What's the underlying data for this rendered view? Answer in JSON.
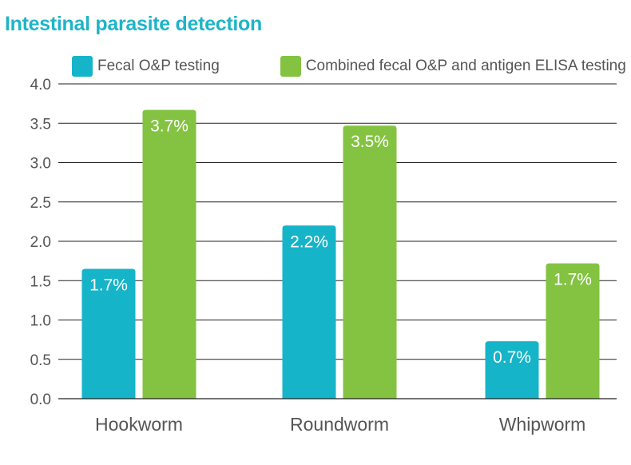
{
  "colors": {
    "title": "#1fb4c7",
    "series_fecal": "#16b4c9",
    "series_combined": "#83c341",
    "grid": "#222222",
    "text": "#555555"
  },
  "chart_data": {
    "type": "bar",
    "title": "Intestinal parasite detection",
    "categories": [
      "Hookworm",
      "Roundworm",
      "Whipworm"
    ],
    "series": [
      {
        "name": "Fecal O&P testing",
        "values": [
          1.65,
          2.2,
          0.73
        ],
        "labels": [
          "1.7%",
          "2.2%",
          "0.7%"
        ],
        "color": "#16b4c9"
      },
      {
        "name": "Combined fecal O&P and antigen ELISA testing",
        "values": [
          3.67,
          3.47,
          1.72
        ],
        "labels": [
          "3.7%",
          "3.5%",
          "1.7%"
        ],
        "color": "#83c341"
      }
    ],
    "ylim": [
      0,
      4
    ],
    "yticks": [
      "0.0",
      "0.5",
      "1.0",
      "1.5",
      "2.0",
      "2.5",
      "3.0",
      "3.5",
      "4.0"
    ],
    "grid": true,
    "legend_position": "top"
  }
}
